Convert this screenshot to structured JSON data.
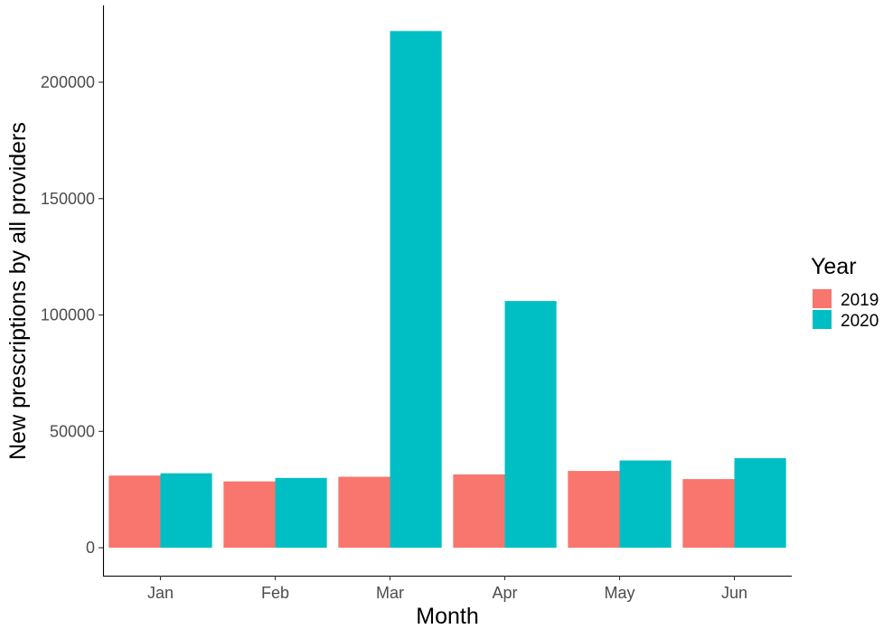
{
  "chart_data": {
    "type": "bar",
    "title": "",
    "xlabel": "Month",
    "ylabel": "New prescriptions by all providers",
    "categories": [
      "Jan",
      "Feb",
      "Mar",
      "Apr",
      "May",
      "Jun"
    ],
    "series": [
      {
        "name": "2019",
        "color": "#F8766D",
        "values": [
          31000,
          28500,
          30500,
          31500,
          33000,
          29500
        ]
      },
      {
        "name": "2020",
        "color": "#00BFC4",
        "values": [
          32000,
          30000,
          222000,
          106000,
          37500,
          38500
        ]
      }
    ],
    "ylim": [
      -12000,
      233000
    ],
    "yticks": [
      0,
      50000,
      100000,
      150000,
      200000
    ],
    "ytick_labels": [
      "0",
      "50000",
      "100000",
      "150000",
      "200000"
    ],
    "grid": false,
    "legend": {
      "title": "Year",
      "placement": "right"
    }
  }
}
